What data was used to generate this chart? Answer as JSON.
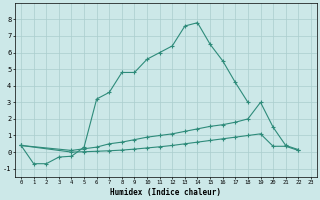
{
  "xlabel": "Humidex (Indice chaleur)",
  "x_all": [
    0,
    1,
    2,
    3,
    4,
    5,
    6,
    7,
    8,
    9,
    10,
    11,
    12,
    13,
    14,
    15,
    16,
    17,
    18,
    19,
    20,
    21,
    22,
    23
  ],
  "line_main": {
    "x": [
      0,
      1,
      2,
      3,
      4,
      5,
      6,
      7,
      8,
      9,
      10,
      11,
      12,
      13,
      14,
      15,
      16,
      17,
      18
    ],
    "y": [
      0.4,
      -0.7,
      -0.7,
      -0.3,
      -0.25,
      0.3,
      3.2,
      3.6,
      4.8,
      4.8,
      5.6,
      6.0,
      6.4,
      7.6,
      7.8,
      6.5,
      5.5,
      4.2,
      3.0
    ]
  },
  "line_diag1": {
    "x": [
      0,
      4,
      5,
      6,
      7,
      8,
      9,
      10,
      11,
      12,
      13,
      14,
      15,
      16,
      17,
      18,
      19,
      20,
      21,
      22
    ],
    "y": [
      0.4,
      0.1,
      0.2,
      0.3,
      0.5,
      0.6,
      0.75,
      0.9,
      1.0,
      1.1,
      1.25,
      1.4,
      1.55,
      1.65,
      1.8,
      2.0,
      3.0,
      1.5,
      0.4,
      0.15
    ]
  },
  "line_diag2": {
    "x": [
      0,
      4,
      5,
      6,
      7,
      8,
      9,
      10,
      11,
      12,
      13,
      14,
      15,
      16,
      17,
      18,
      19,
      20,
      21,
      22
    ],
    "y": [
      0.4,
      0.0,
      0.02,
      0.05,
      0.08,
      0.12,
      0.18,
      0.25,
      0.32,
      0.4,
      0.5,
      0.6,
      0.7,
      0.8,
      0.9,
      1.0,
      1.1,
      0.35,
      0.35,
      0.1
    ]
  },
  "color": "#2e8b7a",
  "bg_color": "#cce8e8",
  "grid_color": "#aacece",
  "ylim": [
    -1.5,
    9.0
  ],
  "xlim": [
    -0.5,
    23.5
  ],
  "yticks": [
    -1,
    0,
    1,
    2,
    3,
    4,
    5,
    6,
    7,
    8
  ],
  "xticks": [
    0,
    1,
    2,
    3,
    4,
    5,
    6,
    7,
    8,
    9,
    10,
    11,
    12,
    13,
    14,
    15,
    16,
    17,
    18,
    19,
    20,
    21,
    22,
    23
  ]
}
